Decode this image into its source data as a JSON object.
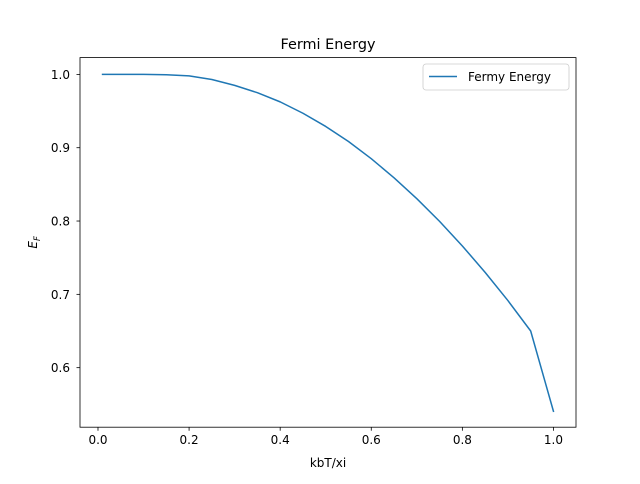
{
  "chart_data": {
    "type": "line",
    "title": "Fermi Energy",
    "xlabel": "kbT/xi",
    "ylabel_main": "E",
    "ylabel_sub": "F",
    "xlim": [
      -0.0395,
      1.0495
    ],
    "ylim": [
      0.5188,
      1.0229
    ],
    "xticks": [
      0.0,
      0.2,
      0.4,
      0.6,
      0.8,
      1.0
    ],
    "xtick_labels": [
      "0.0",
      "0.2",
      "0.4",
      "0.6",
      "0.8",
      "1.0"
    ],
    "yticks": [
      0.6,
      0.7,
      0.8,
      0.9,
      1.0
    ],
    "ytick_labels": [
      "0.6",
      "0.7",
      "0.8",
      "0.9",
      "1.0"
    ],
    "grid": false,
    "legend_position": "upper right",
    "series": [
      {
        "name": "Fermy Energy",
        "color": "#1f77b4",
        "x": [
          0.01,
          0.05,
          0.1,
          0.15,
          0.2,
          0.25,
          0.3,
          0.35,
          0.4,
          0.45,
          0.5,
          0.55,
          0.6,
          0.65,
          0.7,
          0.75,
          0.8,
          0.85,
          0.9,
          0.95,
          1.0
        ],
        "y": [
          1.0,
          1.0,
          1.0,
          0.9995,
          0.998,
          0.993,
          0.985,
          0.975,
          0.9625,
          0.947,
          0.929,
          0.9085,
          0.885,
          0.859,
          0.8305,
          0.7995,
          0.766,
          0.73,
          0.6915,
          0.65,
          0.5405
        ]
      }
    ]
  }
}
